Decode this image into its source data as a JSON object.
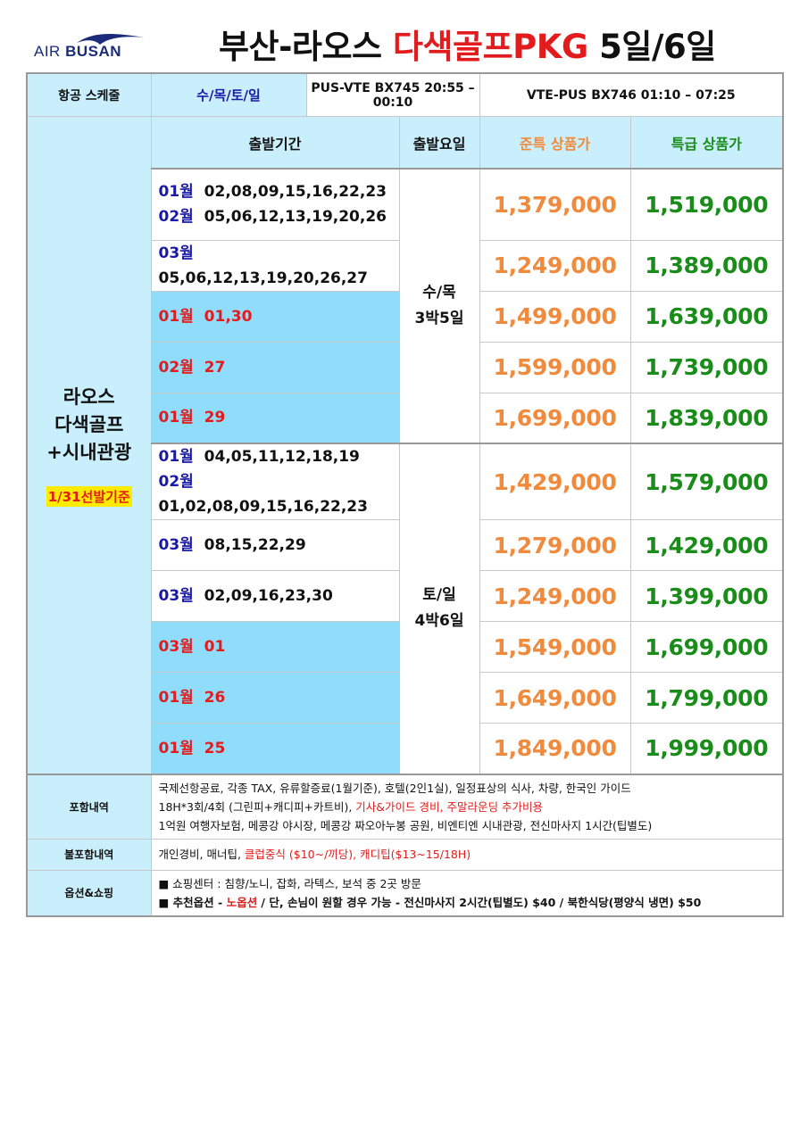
{
  "logo": {
    "text_light": "AIR ",
    "text_bold": "BUSAN"
  },
  "title": {
    "part1": "부산-라오스 ",
    "part2": "다색골프PKG",
    "part3": " 5일/6일"
  },
  "schedule": {
    "label": "항공 스케줄",
    "days": "수/목/토/일",
    "outbound": "PUS-VTE  BX745  20:55 – 00:10",
    "inbound": "VTE-PUS  BX746  01:10 – 07:25"
  },
  "product": {
    "line1": "라오스",
    "line2": "다색골프",
    "line3": "+시내관광",
    "basis": "1/31선발기준"
  },
  "headers": {
    "period": "출발기간",
    "weekday": "출발요일",
    "standard": "준특 상품가",
    "premium": "특급 상품가"
  },
  "groups": [
    {
      "day": "수/목",
      "nights": "3박5일"
    },
    {
      "day": "토/일",
      "nights": "4박6일"
    }
  ],
  "rows": [
    {
      "lines": [
        {
          "month": "01월",
          "dates": "02,08,09,15,16,22,23"
        },
        {
          "month": "02월",
          "dates": "05,06,12,13,19,20,26"
        }
      ],
      "highlight": false,
      "standard": "1,379,000",
      "premium": "1,519,000"
    },
    {
      "lines": [
        {
          "month": "03월",
          "dates": "05,06,12,13,19,20,26,27"
        }
      ],
      "highlight": false,
      "standard": "1,249,000",
      "premium": "1,389,000"
    },
    {
      "lines": [
        {
          "month": "01월",
          "dates": "01,30"
        }
      ],
      "highlight": true,
      "standard": "1,499,000",
      "premium": "1,639,000"
    },
    {
      "lines": [
        {
          "month": "02월",
          "dates": "27"
        }
      ],
      "highlight": true,
      "standard": "1,599,000",
      "premium": "1,739,000"
    },
    {
      "lines": [
        {
          "month": "01월",
          "dates": "29"
        }
      ],
      "highlight": true,
      "standard": "1,699,000",
      "premium": "1,839,000"
    },
    {
      "lines": [
        {
          "month": "01월",
          "dates": "04,05,11,12,18,19"
        },
        {
          "month": "02월",
          "dates": "01,02,08,09,15,16,22,23"
        }
      ],
      "highlight": false,
      "standard": "1,429,000",
      "premium": "1,579,000"
    },
    {
      "lines": [
        {
          "month": "03월",
          "dates": "08,15,22,29"
        }
      ],
      "highlight": false,
      "standard": "1,279,000",
      "premium": "1,429,000"
    },
    {
      "lines": [
        {
          "month": "03월",
          "dates": "02,09,16,23,30"
        }
      ],
      "highlight": false,
      "standard": "1,249,000",
      "premium": "1,399,000"
    },
    {
      "lines": [
        {
          "month": "03월",
          "dates": "01"
        }
      ],
      "highlight": true,
      "standard": "1,549,000",
      "premium": "1,699,000"
    },
    {
      "lines": [
        {
          "month": "01월",
          "dates": "26"
        }
      ],
      "highlight": true,
      "standard": "1,649,000",
      "premium": "1,799,000"
    },
    {
      "lines": [
        {
          "month": "01월",
          "dates": "25"
        }
      ],
      "highlight": true,
      "standard": "1,849,000",
      "premium": "1,999,000"
    }
  ],
  "included": {
    "label": "포함내역",
    "line1": "국제선항공료, 각종 TAX, 유류할증료(1월기준), 호텔(2인1실), 일정표상의 식사, 차량, 한국인 가이드",
    "line2a": "18H*3회/4회 (그린피+캐디피+카트비), ",
    "line2b": "기사&가이드 경비, 주말라운딩 추가비용",
    "line3": "1억원 여행자보험, 메콩강 야시장, 메콩강 짜오아누봉 공원, 비엔티엔 시내관광, 전신마사지 1시간(팁별도)"
  },
  "excluded": {
    "label": "불포함내역",
    "text_a": "개인경비, 매너팁, ",
    "text_b": "클럽중식 ($10~/끼당), 캐디팁($13~15/18H)"
  },
  "options": {
    "label": "옵션&쇼핑",
    "line1": "■  쇼핑센터 : 침향/노니, 잡화, 라텍스, 보석 중 2곳 방문",
    "line2a": "■  추천옵션 - ",
    "line2b": "노옵션",
    "line2c": " / 단, 손님이 원할 경우 가능 - 전신마사지 2시간(팁별도) $40 / 북한식당(평양식 냉면) $50"
  }
}
